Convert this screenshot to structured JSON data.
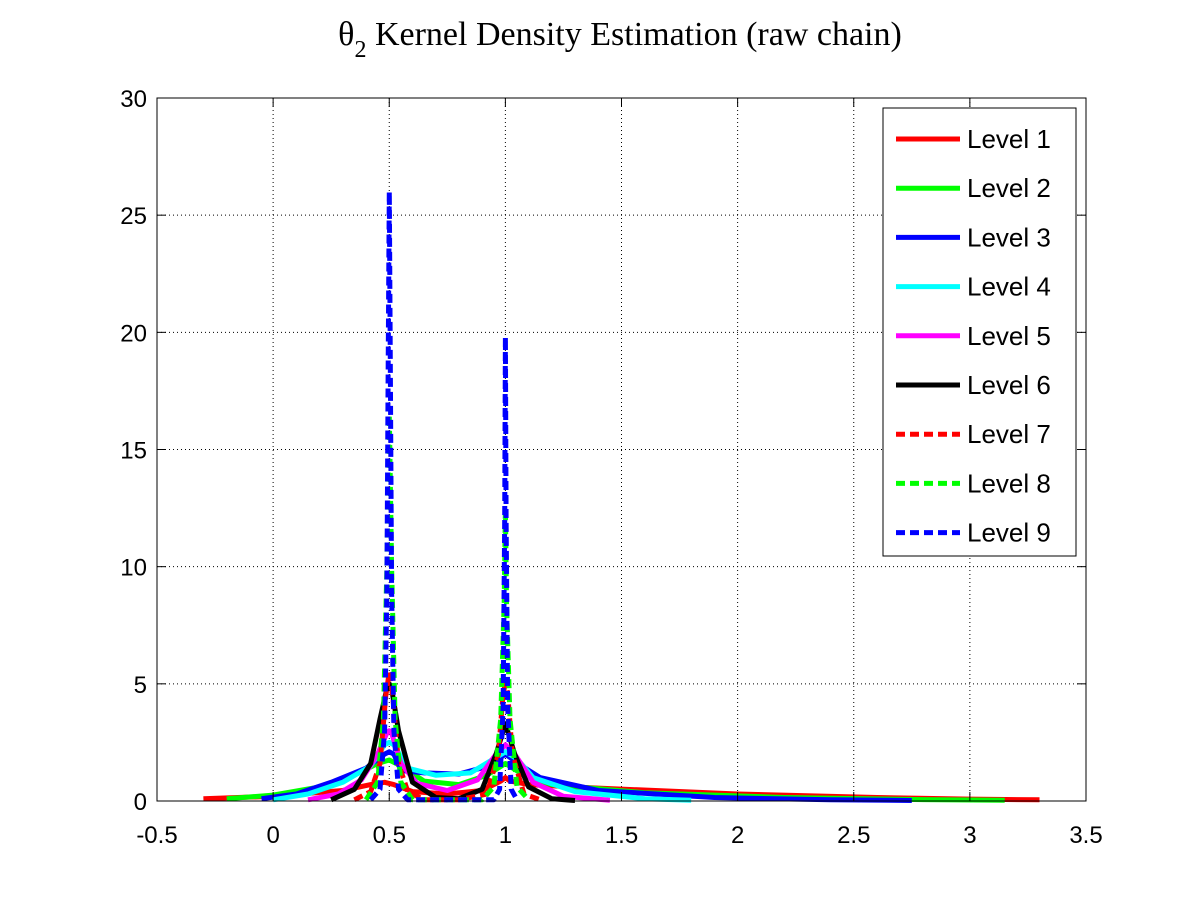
{
  "chart_data": {
    "type": "line",
    "title": {
      "symbol": "θ",
      "subscript": "2",
      "text": " Kernel Density Estimation (raw chain)"
    },
    "xlabel": "",
    "ylabel": "",
    "xlim": [
      -0.5,
      3.5
    ],
    "ylim": [
      0,
      30
    ],
    "xticks": [
      -0.5,
      0,
      0.5,
      1,
      1.5,
      2,
      2.5,
      3,
      3.5
    ],
    "xtick_labels": [
      "-0.5",
      "0",
      "0.5",
      "1",
      "1.5",
      "2",
      "2.5",
      "3",
      "3.5"
    ],
    "yticks": [
      0,
      5,
      10,
      15,
      20,
      25,
      30
    ],
    "ytick_labels": [
      "0",
      "5",
      "10",
      "15",
      "20",
      "25",
      "30"
    ],
    "grid": true,
    "legend_position": "top-right",
    "series": [
      {
        "name": "Level 1",
        "color": "#ff0000",
        "style": "solid",
        "x": [
          -0.3,
          0,
          0.3,
          0.42,
          0.48,
          0.52,
          0.6,
          0.75,
          0.9,
          0.98,
          1.0,
          1.02,
          1.1,
          1.4,
          2.0,
          2.6,
          3.0,
          3.3
        ],
        "y": [
          0.1,
          0.2,
          0.45,
          0.7,
          0.8,
          0.7,
          0.4,
          0.3,
          0.45,
          0.85,
          1.0,
          0.85,
          0.7,
          0.55,
          0.3,
          0.15,
          0.08,
          0.05
        ]
      },
      {
        "name": "Level 2",
        "color": "#00ff00",
        "style": "solid",
        "x": [
          -0.2,
          0,
          0.2,
          0.35,
          0.45,
          0.5,
          0.55,
          0.65,
          0.8,
          0.92,
          1.0,
          1.08,
          1.2,
          1.6,
          2.2,
          2.8,
          3.15
        ],
        "y": [
          0.1,
          0.25,
          0.6,
          1.1,
          1.6,
          1.75,
          1.5,
          0.85,
          0.7,
          1.1,
          1.6,
          1.1,
          0.7,
          0.35,
          0.15,
          0.06,
          0.03
        ]
      },
      {
        "name": "Level 3",
        "color": "#0000ff",
        "style": "solid",
        "x": [
          -0.05,
          0.1,
          0.25,
          0.4,
          0.48,
          0.5,
          0.52,
          0.55,
          0.65,
          0.8,
          0.93,
          1.0,
          1.07,
          1.15,
          1.4,
          1.9,
          2.4,
          2.75
        ],
        "y": [
          0.1,
          0.3,
          0.8,
          1.4,
          2.0,
          2.1,
          2.0,
          1.3,
          1.2,
          1.15,
          1.5,
          2.0,
          1.5,
          1.0,
          0.45,
          0.15,
          0.05,
          0.02
        ]
      },
      {
        "name": "Level 4",
        "color": "#00ffff",
        "style": "solid",
        "x": [
          0.0,
          0.15,
          0.3,
          0.42,
          0.48,
          0.5,
          0.52,
          0.58,
          0.7,
          0.85,
          0.95,
          1.0,
          1.05,
          1.12,
          1.3,
          1.6,
          1.8
        ],
        "y": [
          0.05,
          0.3,
          0.8,
          1.5,
          2.4,
          2.5,
          2.4,
          1.4,
          1.1,
          1.2,
          1.8,
          2.1,
          1.8,
          1.0,
          0.4,
          0.1,
          0.03
        ]
      },
      {
        "name": "Level 5",
        "color": "#ff00ff",
        "style": "solid",
        "x": [
          0.15,
          0.28,
          0.38,
          0.45,
          0.49,
          0.5,
          0.51,
          0.55,
          0.62,
          0.75,
          0.88,
          0.96,
          1.0,
          1.04,
          1.12,
          1.25,
          1.45
        ],
        "y": [
          0.05,
          0.3,
          0.9,
          2.0,
          2.9,
          3.0,
          2.9,
          1.6,
          0.75,
          0.45,
          0.9,
          2.0,
          2.4,
          2.0,
          0.8,
          0.2,
          0.03
        ]
      },
      {
        "name": "Level 6",
        "color": "#000000",
        "style": "solid",
        "x": [
          0.25,
          0.35,
          0.42,
          0.46,
          0.49,
          0.5,
          0.51,
          0.54,
          0.6,
          0.7,
          0.8,
          0.9,
          0.96,
          1.0,
          1.04,
          1.1,
          1.2,
          1.3
        ],
        "y": [
          0.05,
          0.5,
          1.6,
          3.5,
          4.8,
          5.0,
          4.8,
          3.0,
          0.8,
          0.15,
          0.1,
          0.5,
          2.0,
          3.3,
          2.0,
          0.6,
          0.1,
          0.02
        ]
      },
      {
        "name": "Level 7",
        "color": "#ff0000",
        "style": "dashed",
        "x": [
          0.35,
          0.42,
          0.46,
          0.485,
          0.5,
          0.515,
          0.54,
          0.58,
          0.65,
          0.8,
          0.92,
          0.97,
          0.99,
          1.0,
          1.01,
          1.03,
          1.08,
          1.15
        ],
        "y": [
          0.05,
          0.4,
          1.6,
          4.5,
          5.5,
          4.5,
          1.6,
          0.4,
          0.05,
          0.05,
          0.3,
          2.0,
          4.6,
          5.0,
          4.6,
          2.0,
          0.3,
          0.05
        ]
      },
      {
        "name": "Level 8",
        "color": "#00ff00",
        "style": "dashed",
        "x": [
          0.4,
          0.45,
          0.475,
          0.49,
          0.5,
          0.51,
          0.525,
          0.55,
          0.6,
          0.9,
          0.95,
          0.98,
          0.995,
          1.0,
          1.005,
          1.02,
          1.05,
          1.1
        ],
        "y": [
          0.05,
          0.8,
          3.5,
          10.0,
          16.5,
          10.0,
          3.5,
          0.8,
          0.05,
          0.05,
          0.6,
          3.5,
          8.5,
          12.5,
          8.5,
          3.5,
          0.6,
          0.05
        ]
      },
      {
        "name": "Level 9",
        "color": "#0000ff",
        "style": "dashed",
        "x": [
          0.42,
          0.46,
          0.48,
          0.49,
          0.495,
          0.5,
          0.505,
          0.51,
          0.52,
          0.54,
          0.58,
          0.95,
          0.975,
          0.99,
          0.997,
          1.0,
          1.003,
          1.01,
          1.025,
          1.05
        ],
        "y": [
          0.05,
          0.5,
          3.0,
          9.0,
          18.0,
          26.0,
          18.0,
          9.0,
          3.0,
          0.5,
          0.05,
          0.05,
          0.5,
          4.0,
          12.0,
          19.8,
          12.0,
          4.0,
          0.5,
          0.05
        ]
      }
    ]
  }
}
